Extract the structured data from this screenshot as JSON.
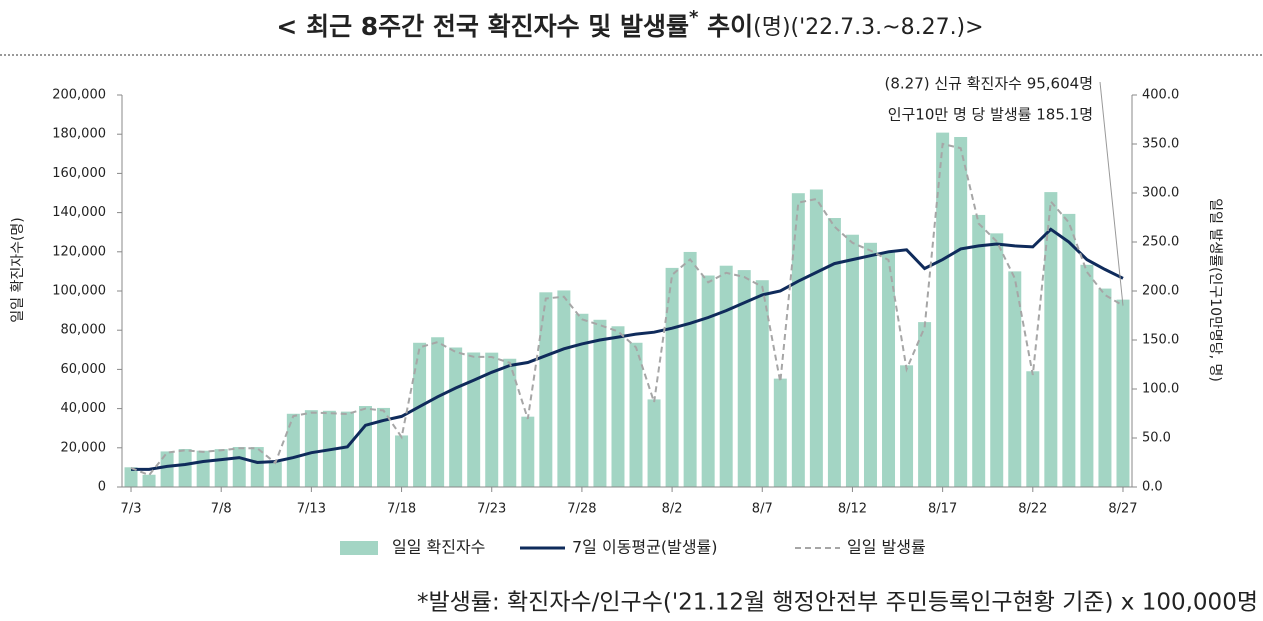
{
  "chart_data": {
    "type": "bar",
    "title_parts": [
      "< 최근 8주간 전국 확진자수 및 발생률",
      "*",
      " 추이",
      "(명)('22.7.3.~8.27.)>"
    ],
    "footnote": "*발생률: 확진자수/인구수('21.12월 행정안전부 주민등록인구현황 기준) x 100,000명",
    "annotations": [
      "(8.27) 신규 확진자수 95,604명",
      "인구10만 명 당 발생률 185.1명"
    ],
    "ylabel": "일일 확진자수(명)",
    "y2label": "일일 발생률(인구10만명당, 명)",
    "categories": [
      "7/3",
      null,
      null,
      null,
      null,
      "7/8",
      null,
      null,
      null,
      null,
      "7/13",
      null,
      null,
      null,
      null,
      "7/18",
      null,
      null,
      null,
      null,
      "7/23",
      null,
      null,
      null,
      null,
      "7/28",
      null,
      null,
      null,
      null,
      "8/2",
      null,
      null,
      null,
      null,
      "8/7",
      null,
      null,
      null,
      null,
      "8/12",
      null,
      null,
      null,
      null,
      "8/17",
      null,
      null,
      null,
      null,
      "8/22",
      null,
      null,
      null,
      null,
      "8/27"
    ],
    "ylim": [
      0,
      200000
    ],
    "yticks": [
      0,
      {
        "value": 20000,
        "label": "20,000"
      },
      {
        "value": 40000,
        "label": "40,000"
      },
      {
        "value": 60000,
        "label": "60,000"
      },
      {
        "value": 80000,
        "label": "80,000"
      },
      {
        "value": 100000,
        "label": "100,000"
      },
      {
        "value": 120000,
        "label": "120,000"
      },
      {
        "value": 140000,
        "label": "140,000"
      },
      {
        "value": 160000,
        "label": "160,000"
      },
      {
        "value": 180000,
        "label": "180,000"
      },
      {
        "value": 200000,
        "label": "200,000"
      }
    ],
    "y2lim": [
      0,
      400
    ],
    "y2ticks": [
      {
        "value": 0,
        "label": "0.0"
      },
      {
        "value": 50,
        "label": "50.0"
      },
      {
        "value": 100,
        "label": "100.0"
      },
      {
        "value": 150,
        "label": "150.0"
      },
      {
        "value": 200,
        "label": "200.0"
      },
      {
        "value": 250,
        "label": "250.0"
      },
      {
        "value": 300,
        "label": "300.0"
      },
      {
        "value": 350,
        "label": "350.0"
      },
      {
        "value": 400,
        "label": "400.0"
      }
    ],
    "series": [
      {
        "name": "일일 확진자수",
        "type": "bar",
        "color": "#a3d5c4",
        "values": [
          10059,
          6253,
          18147,
          19371,
          18511,
          19323,
          20410,
          20383,
          12693,
          37360,
          39195,
          38882,
          38458,
          41310,
          40342,
          26299,
          73582,
          76402,
          71170,
          68632,
          68551,
          65433,
          35883,
          99327,
          100285,
          88384,
          85320,
          82002,
          73589,
          44689,
          111789,
          119922,
          107894,
          112901,
          110666,
          105507,
          55292,
          149897,
          151792,
          137241,
          128714,
          124592,
          119603,
          62078,
          84128,
          180803,
          178574,
          138812,
          129411,
          110014,
          59046,
          150458,
          139339,
          113370,
          101235,
          95604
        ]
      },
      {
        "name": "7일 이동평균(발생률)",
        "type": "line",
        "axis": "y2",
        "color": "#0f2b5b",
        "values": [
          18,
          18,
          21,
          23,
          26,
          28,
          30,
          25,
          26,
          30,
          35,
          38,
          41,
          63,
          68,
          72,
          82,
          92,
          101,
          109,
          117,
          124,
          127,
          134,
          141,
          146,
          150,
          153,
          156,
          158,
          162,
          167,
          173,
          180,
          188,
          196,
          200,
          210,
          219,
          228,
          232,
          236,
          240,
          242,
          223,
          232,
          243,
          246,
          248,
          246,
          245,
          263,
          250,
          232,
          222,
          213
        ]
      },
      {
        "name": "일일 발생률",
        "type": "line",
        "axis": "y2",
        "dashed": true,
        "color": "#a6a6a6",
        "values": [
          19.5,
          12.1,
          35.1,
          37.5,
          35.8,
          37.4,
          39.5,
          39.5,
          24.6,
          72.3,
          75.9,
          75.3,
          74.5,
          80.0,
          78.1,
          50.9,
          142.5,
          147.9,
          137.8,
          132.9,
          132.7,
          126.7,
          69.5,
          192.3,
          194.2,
          171.1,
          165.2,
          158.8,
          142.5,
          86.5,
          216.4,
          232.2,
          208.9,
          218.6,
          214.3,
          204.3,
          107.1,
          290.2,
          293.9,
          265.7,
          249.2,
          241.2,
          231.6,
          120.2,
          162.9,
          350.1,
          345.7,
          268.8,
          250.6,
          213.0,
          114.3,
          291.3,
          269.8,
          219.5,
          196.0,
          185.1
        ]
      }
    ]
  }
}
